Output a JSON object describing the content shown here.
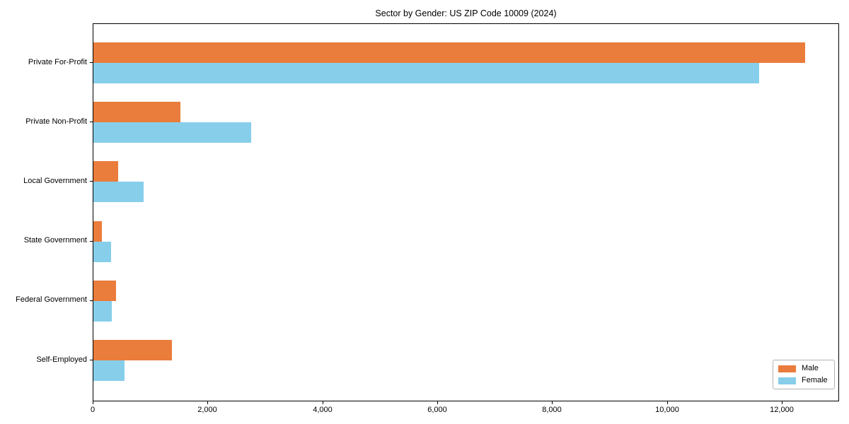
{
  "title": "Sector by Gender: US ZIP Code 10009 (2024)",
  "colors": {
    "male": "#ea7c3c",
    "female": "#87ceeb",
    "axis": "#000000",
    "background": "#ffffff",
    "legend_border": "#b3b3b3"
  },
  "chart_data": {
    "type": "bar",
    "orientation": "horizontal",
    "title": "Sector by Gender: US ZIP Code 10009 (2024)",
    "xlabel": "",
    "ylabel": "",
    "grid": false,
    "legend_position": "lower right",
    "categories": [
      "Private For-Profit",
      "Private Non-Profit",
      "Local Government",
      "State Government",
      "Federal Government",
      "Self-Employed"
    ],
    "series": [
      {
        "name": "Male",
        "color": "#ea7c3c",
        "values": [
          12400,
          1520,
          430,
          150,
          390,
          1370
        ]
      },
      {
        "name": "Female",
        "color": "#87ceeb",
        "values": [
          11600,
          2750,
          870,
          310,
          320,
          540
        ]
      }
    ],
    "xlim": [
      0,
      13000
    ],
    "x_ticks": [
      0,
      2000,
      4000,
      6000,
      8000,
      10000,
      12000
    ],
    "x_tick_labels": [
      "0",
      "2,000",
      "4,000",
      "6,000",
      "8,000",
      "10,000",
      "12,000"
    ]
  }
}
